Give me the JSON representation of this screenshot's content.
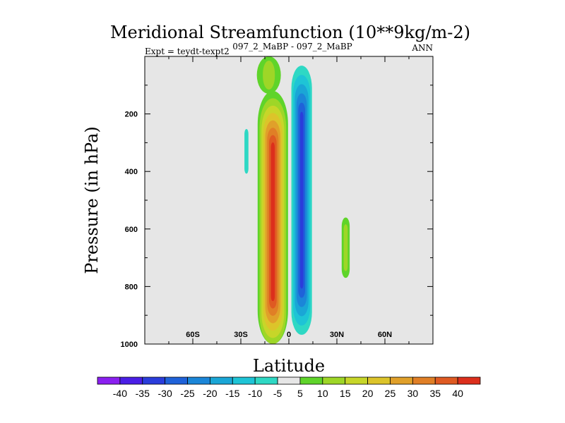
{
  "chart_data": {
    "type": "heatmap",
    "title": "Meridional Streamfunction (10**9kg/m-2)",
    "subtitle_left": "Expt = teydt-texpt2",
    "subtitle_center": "097_2_MaBP - 097_2_MaBP",
    "subtitle_right": "ANN",
    "xlabel": "Latitude",
    "ylabel": "Pressure (in hPa)",
    "xlim": [
      -90,
      90
    ],
    "ylim": [
      0,
      1000
    ],
    "y_inverted": true,
    "x_ticks": [
      {
        "value": -60,
        "label": "60S"
      },
      {
        "value": -30,
        "label": "30S"
      },
      {
        "value": 0,
        "label": "0"
      },
      {
        "value": 30,
        "label": "30N"
      },
      {
        "value": 60,
        "label": "60N"
      }
    ],
    "y_ticks": [
      {
        "value": 200,
        "label": "200"
      },
      {
        "value": 400,
        "label": "400"
      },
      {
        "value": 600,
        "label": "600"
      },
      {
        "value": 800,
        "label": "800"
      },
      {
        "value": 1000,
        "label": "1000"
      }
    ],
    "background_color": "#e6e6e6",
    "colorbar": {
      "levels": [
        -40,
        -35,
        -30,
        -25,
        -20,
        -15,
        -10,
        -5,
        5,
        10,
        15,
        20,
        25,
        30,
        35,
        40
      ],
      "colors": [
        "#8a1ff0",
        "#4a1ee6",
        "#2a3ddb",
        "#1f62d9",
        "#1b86d8",
        "#1aa6d6",
        "#1ec4d6",
        "#2ed8c4",
        "#e6e6e6",
        "#5fd42a",
        "#9ed627",
        "#c7d629",
        "#dcc42a",
        "#e0a02a",
        "#e07f26",
        "#df5a22",
        "#dc2f1c"
      ]
    },
    "features": [
      {
        "name": "northern-hadley-cell",
        "sign": "negative",
        "lat_range": [
          0,
          15
        ],
        "p_range": [
          0,
          1000
        ],
        "min_value": -35,
        "core_lat": 8,
        "core_p": [
          200,
          800
        ]
      },
      {
        "name": "southern-hadley-cell",
        "sign": "positive",
        "lat_range": [
          -22,
          -3
        ],
        "p_range": [
          90,
          1000
        ],
        "max_value": 40,
        "core_lat": -10,
        "core_p": [
          250,
          900
        ]
      },
      {
        "name": "southern-positive-fringe",
        "sign": "positive",
        "lat_range": [
          -20,
          -5
        ],
        "p_range": [
          0,
          130
        ],
        "max_value": 10
      },
      {
        "name": "southern-subtropical-negative-blob",
        "sign": "negative",
        "lat_range": [
          -29,
          -24
        ],
        "p_range": [
          230,
          430
        ],
        "min_value": -10
      },
      {
        "name": "northern-subtropical-positive-blob",
        "sign": "positive",
        "lat_range": [
          33,
          38
        ],
        "p_range": [
          560,
          770
        ],
        "max_value": 10
      }
    ]
  }
}
